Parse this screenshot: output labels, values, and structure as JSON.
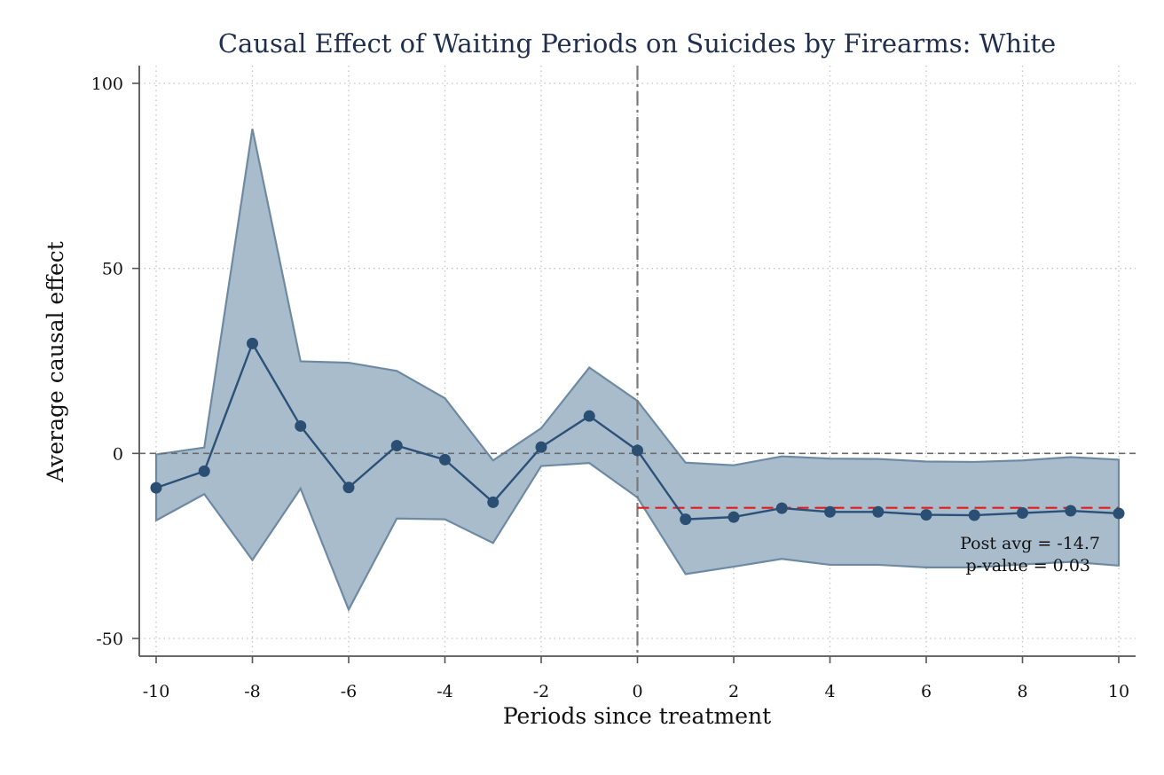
{
  "chart_data": {
    "type": "line",
    "title": "Causal Effect of Waiting Periods on Suicides by Firearms: White",
    "xlabel": "Periods since treatment",
    "ylabel": "Average causal effect",
    "xlim": [
      -10,
      10
    ],
    "ylim": [
      -50,
      100
    ],
    "xticks": [
      "-10",
      "-8",
      "-6",
      "-4",
      "-2",
      "0",
      "2",
      "4",
      "6",
      "8",
      "10"
    ],
    "yticks": [
      "-50",
      "0",
      "50",
      "100"
    ],
    "grid": true,
    "x": [
      -10,
      -9,
      -8,
      -7,
      -6,
      -5,
      -4,
      -3,
      -2,
      -1,
      0,
      1,
      2,
      3,
      4,
      5,
      6,
      7,
      8,
      9,
      10
    ],
    "series": [
      {
        "values": [
          -9.3,
          -4.8,
          29.7,
          7.4,
          -9.2,
          2.1,
          -1.7,
          -13.2,
          1.7,
          10.1,
          0.8,
          -17.8,
          -17.2,
          -14.8,
          -15.8,
          -15.8,
          -16.6,
          -16.7,
          -16.1,
          -15.5,
          -16.2
        ],
        "lower": [
          -18.1,
          -11.0,
          -28.8,
          -9.5,
          -42.2,
          -17.6,
          -17.8,
          -24.2,
          -3.4,
          -2.6,
          -11.9,
          -32.6,
          -30.6,
          -28.5,
          -30.1,
          -30.1,
          -30.8,
          -30.8,
          -30.0,
          -29.3,
          -30.3
        ],
        "upper": [
          -0.3,
          1.6,
          87.7,
          24.9,
          24.5,
          22.3,
          14.9,
          -1.9,
          6.8,
          23.2,
          14.2,
          -2.5,
          -3.2,
          -0.8,
          -1.4,
          -1.5,
          -2.2,
          -2.3,
          -1.9,
          -1.0,
          -1.7
        ]
      }
    ],
    "reference_lines": {
      "horizontal_zero": 0,
      "vertical_treatment": 0,
      "post_average": -14.7
    },
    "annotations": {
      "post_avg": "Post avg = -14.7",
      "p_value": "p-value = 0.03"
    },
    "colors": {
      "band_fill": "#a9bccc",
      "band_edge": "#6e8aa3",
      "line": "#2c5178",
      "marker": "#2a4f73",
      "post_avg_line": "#e41a1c",
      "title": "#1f2f4d",
      "grid": "#c4c4c4"
    }
  }
}
